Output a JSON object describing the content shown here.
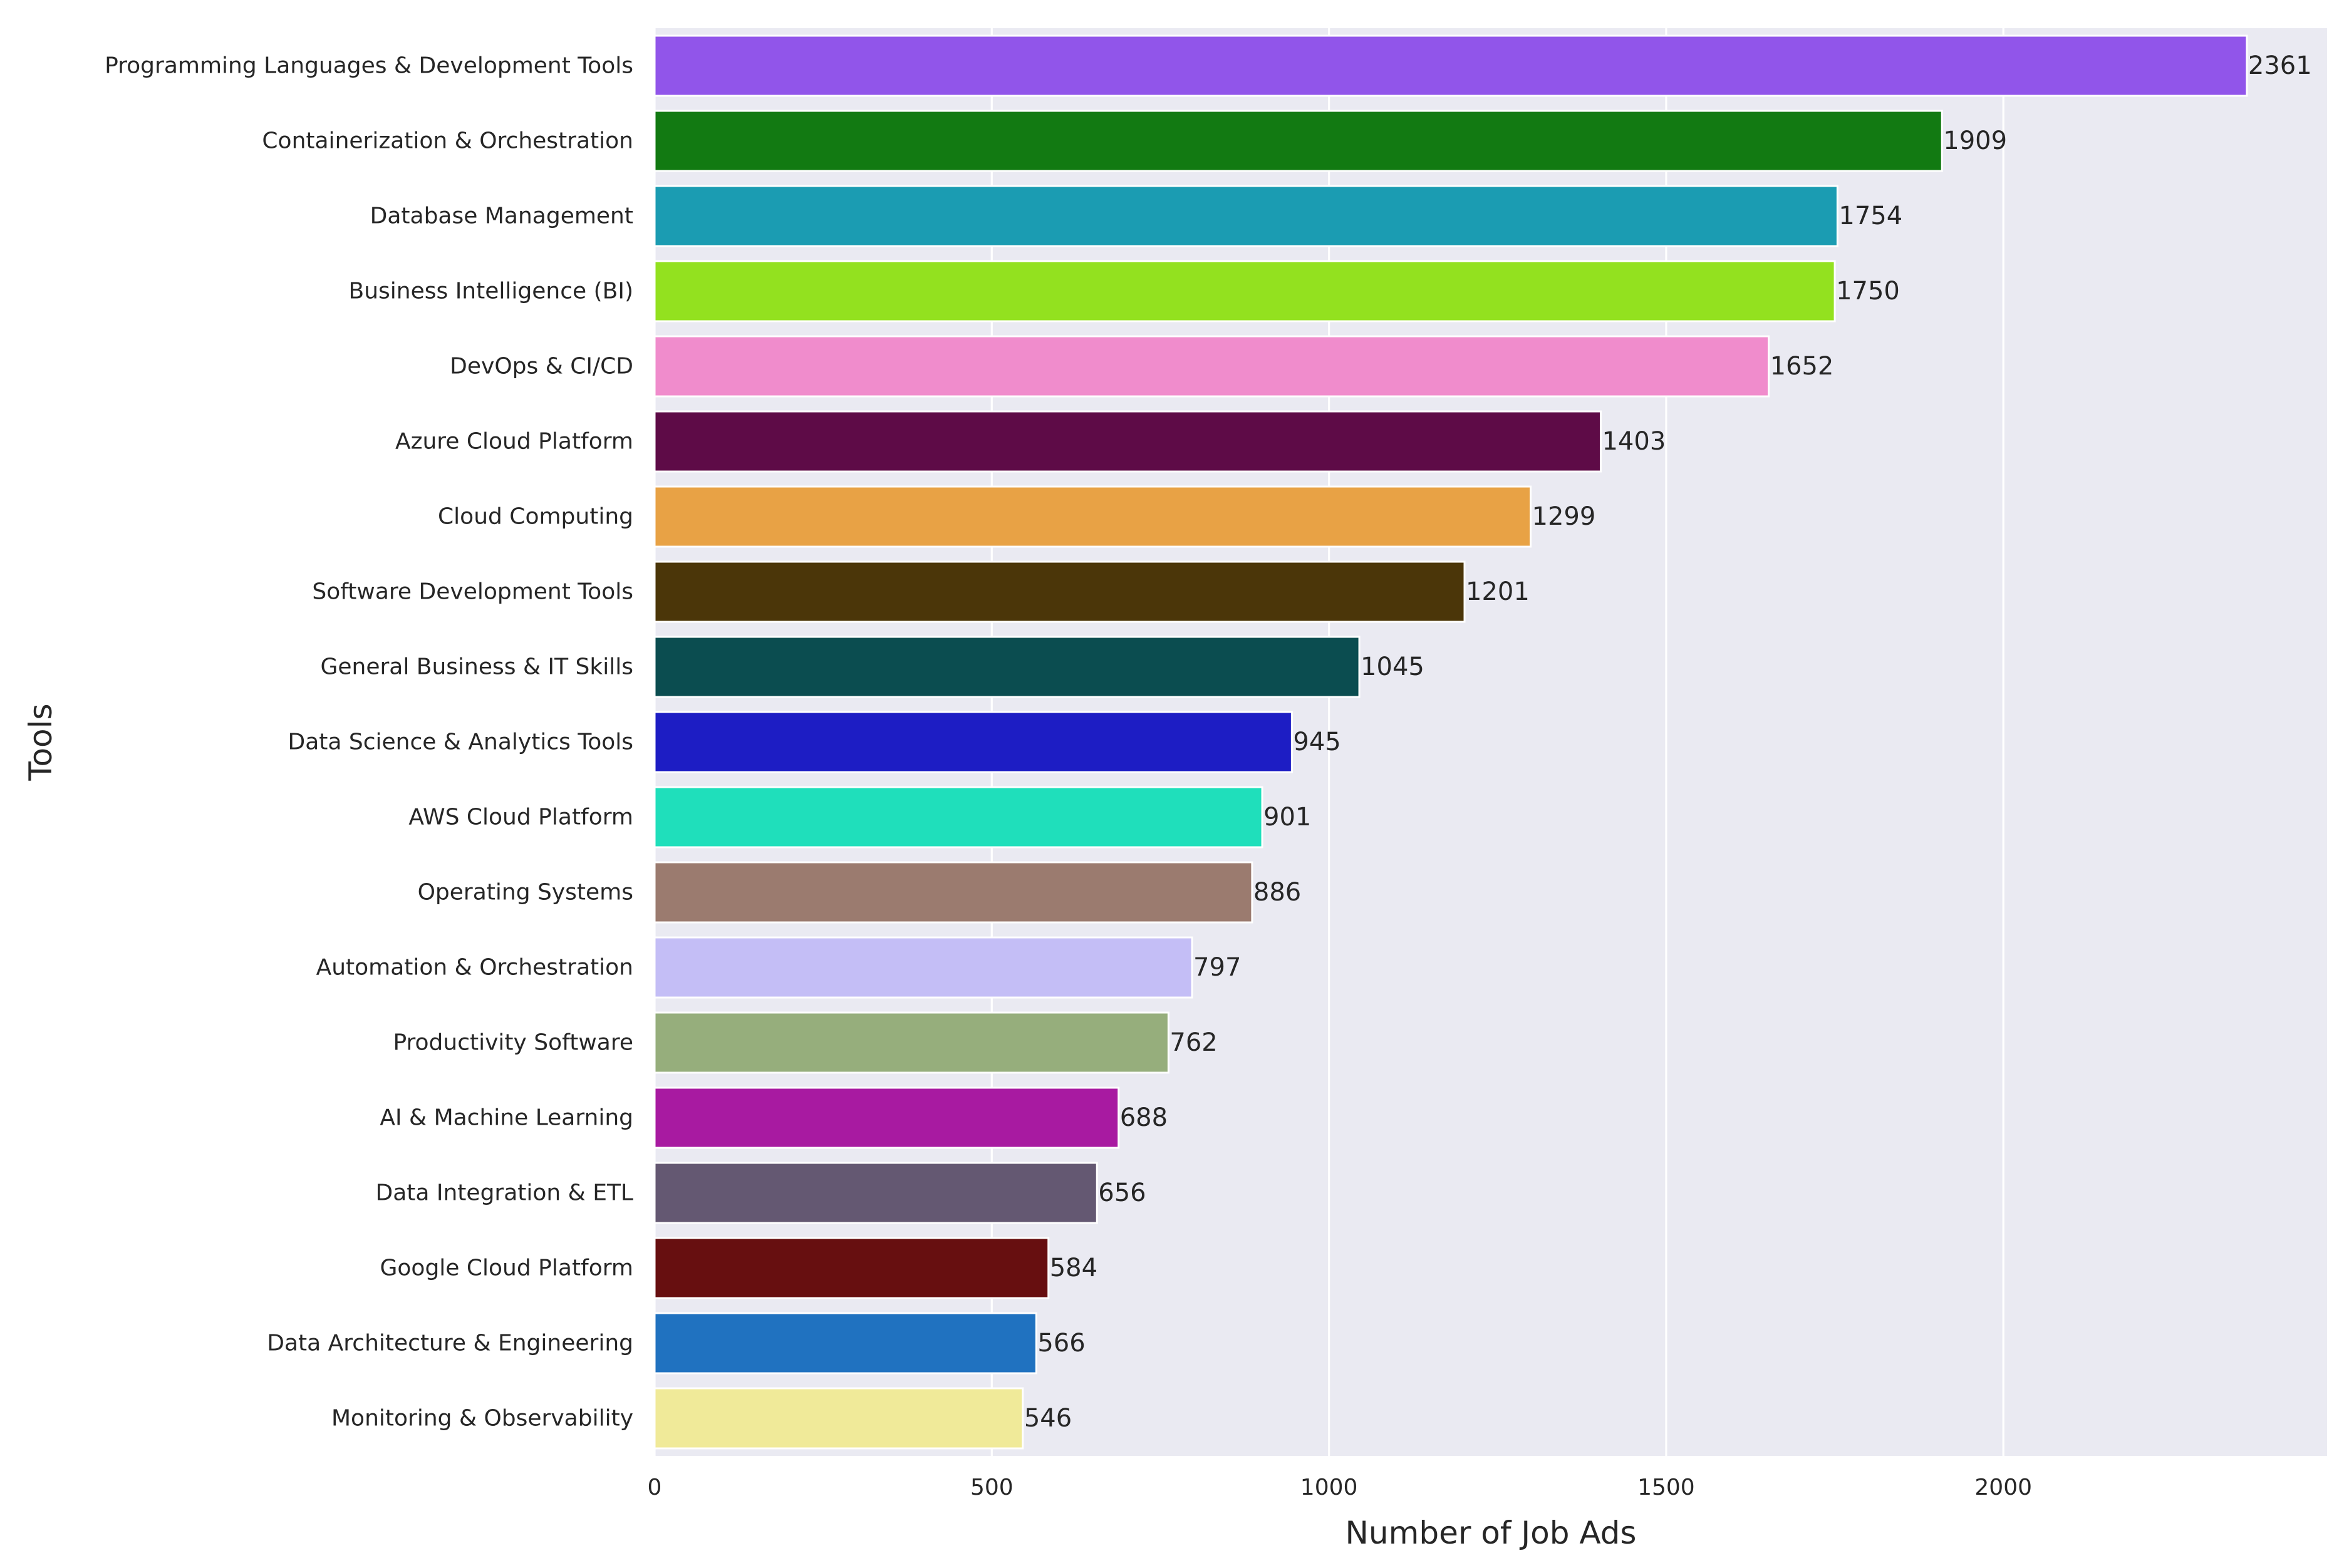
{
  "chart_data": {
    "type": "bar",
    "orientation": "horizontal",
    "title": "",
    "xlabel": "Number of Job Ads",
    "ylabel": "Tools",
    "xlim": [
      0,
      2480
    ],
    "xticks": [
      0,
      500,
      1000,
      1500,
      2000
    ],
    "grid": true,
    "legend": "none",
    "background_color": "#eaeaf2",
    "categories": [
      "Programming Languages & Development Tools",
      "Containerization & Orchestration",
      "Database Management",
      "Business Intelligence (BI)",
      "DevOps & CI/CD",
      "Azure Cloud Platform",
      "Cloud Computing",
      "Software Development Tools",
      "General Business & IT Skills",
      "Data Science & Analytics Tools",
      "AWS Cloud Platform",
      "Operating Systems",
      "Automation & Orchestration",
      "Productivity Software",
      "AI & Machine Learning",
      "Data Integration & ETL",
      "Google Cloud Platform",
      "Data Architecture & Engineering",
      "Monitoring & Observability"
    ],
    "values": [
      2361,
      1909,
      1754,
      1750,
      1652,
      1403,
      1299,
      1201,
      1045,
      945,
      901,
      886,
      797,
      762,
      688,
      656,
      584,
      566,
      546
    ],
    "colors": [
      "#9155ea",
      "#127a12",
      "#1b9cb2",
      "#93e11f",
      "#f08ccc",
      "#5e0b47",
      "#e8a245",
      "#4b3609",
      "#0b4d50",
      "#1d1dc4",
      "#1fdfbb",
      "#9b7b6f",
      "#c4bef6",
      "#96ae7c",
      "#a81aa1",
      "#645872",
      "#670f10",
      "#2072c0",
      "#f0ea99"
    ]
  }
}
